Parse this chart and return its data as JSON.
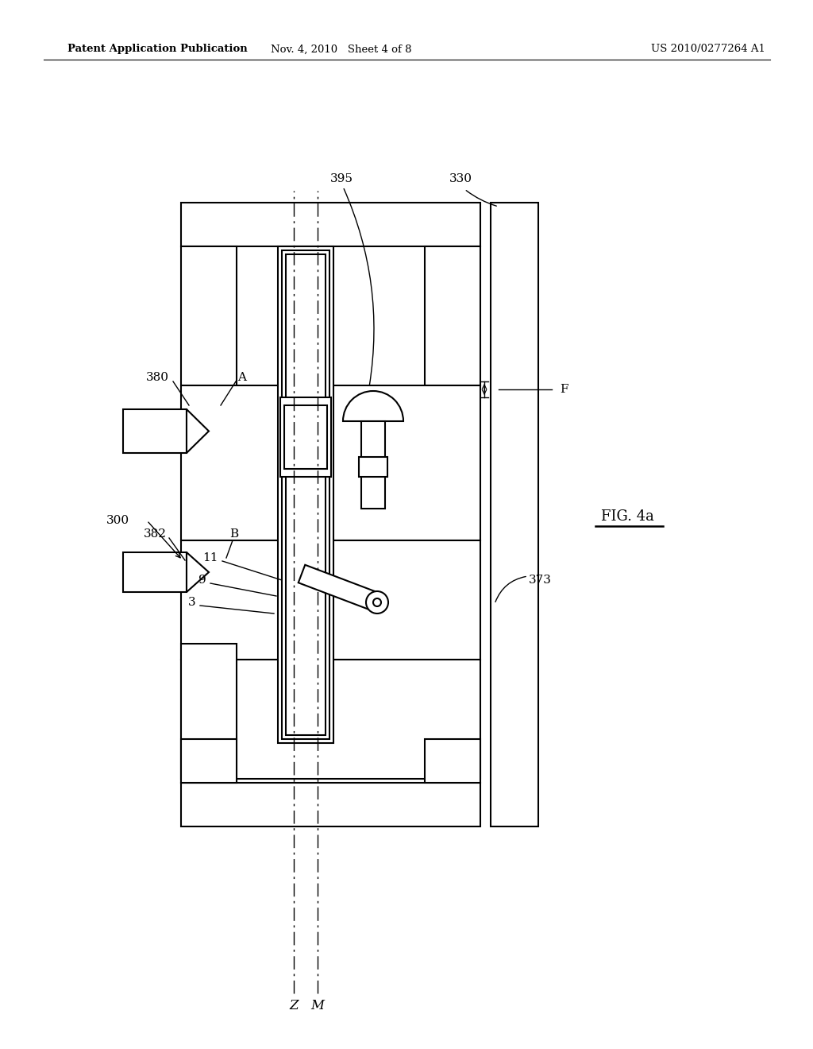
{
  "bg_color": "#ffffff",
  "line_color": "#000000",
  "header_left": "Patent Application Publication",
  "header_mid": "Nov. 4, 2010   Sheet 4 of 8",
  "header_right": "US 2010/0277264 A1",
  "fig_label": "FIG. 4a"
}
